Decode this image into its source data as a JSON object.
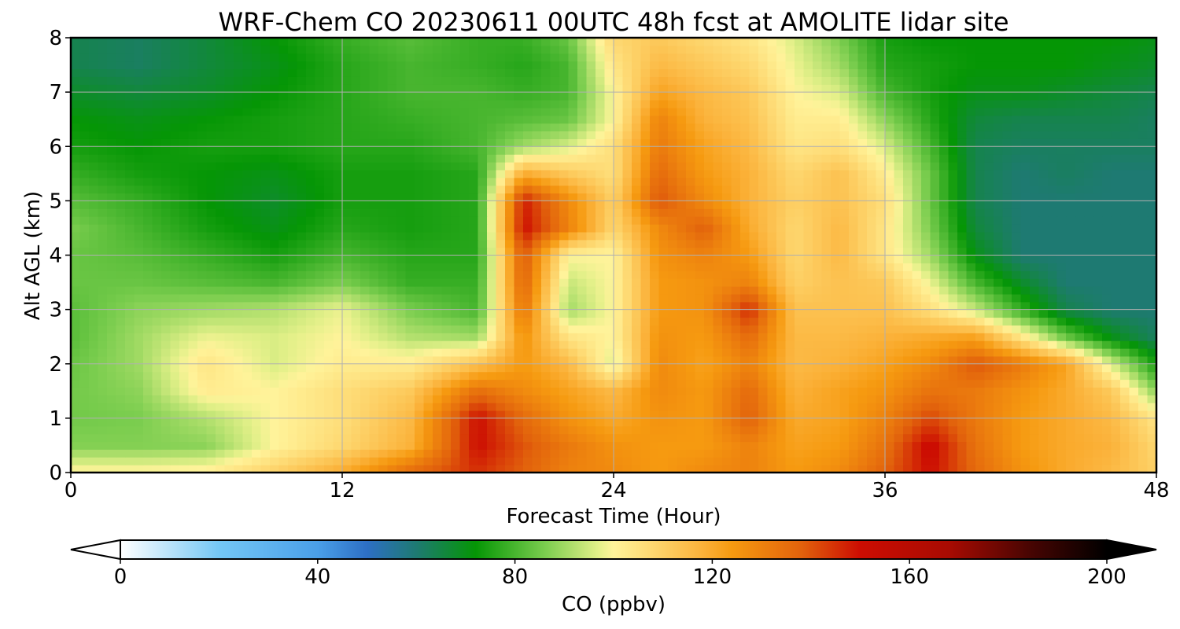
{
  "chart_data": {
    "type": "heatmap",
    "subtype": "filled-contour time-height cross-section",
    "title": "WRF-Chem CO  20230611 00UTC 48h fcst at AMOLITE lidar site",
    "xlabel": "Forecast Time (Hour)",
    "ylabel": "Alt AGL (km)",
    "xlim": [
      0,
      48
    ],
    "ylim": [
      0,
      8
    ],
    "xticks": [
      0,
      12,
      24,
      36,
      48
    ],
    "yticks": [
      0,
      1,
      2,
      3,
      4,
      5,
      6,
      7,
      8
    ],
    "grid": true,
    "colorbar": {
      "label": "CO  (ppbv)",
      "min": 0,
      "max": 200,
      "ticks": [
        0,
        40,
        80,
        120,
        160,
        200
      ],
      "extend": "both",
      "orientation": "horizontal",
      "stops": [
        {
          "value": 0,
          "color": "#ffffff"
        },
        {
          "value": 20,
          "color": "#74c7f5"
        },
        {
          "value": 40,
          "color": "#4a9fe8"
        },
        {
          "value": 50,
          "color": "#2d6fc4"
        },
        {
          "value": 60,
          "color": "#1e7a72"
        },
        {
          "value": 72,
          "color": "#059605"
        },
        {
          "value": 86,
          "color": "#7acd4e"
        },
        {
          "value": 97,
          "color": "#e3f089"
        },
        {
          "value": 100,
          "color": "#fff39a"
        },
        {
          "value": 110,
          "color": "#fdd065"
        },
        {
          "value": 118,
          "color": "#fbb23a"
        },
        {
          "value": 124,
          "color": "#f69a10"
        },
        {
          "value": 138,
          "color": "#e2620c"
        },
        {
          "value": 150,
          "color": "#cc0d02"
        },
        {
          "value": 168,
          "color": "#a80b02"
        },
        {
          "value": 184,
          "color": "#4a0502"
        },
        {
          "value": 200,
          "color": "#000000"
        }
      ]
    },
    "x": [
      0,
      3,
      6,
      9,
      12,
      15,
      18,
      20,
      22,
      24,
      26,
      28,
      30,
      32,
      34,
      36,
      38,
      40,
      42,
      44,
      46,
      48
    ],
    "y": [
      0,
      0.5,
      1,
      1.5,
      2,
      2.5,
      3,
      3.5,
      4,
      4.5,
      5,
      5.5,
      6,
      6.5,
      7,
      7.5,
      8
    ],
    "z": [
      [
        101,
        101,
        102,
        110,
        120,
        136,
        145,
        138,
        130,
        128,
        124,
        128,
        130,
        124,
        128,
        138,
        150,
        136,
        126,
        120,
        116,
        110
      ],
      [
        87,
        87,
        88,
        100,
        108,
        118,
        150,
        140,
        132,
        126,
        124,
        124,
        130,
        122,
        124,
        134,
        152,
        134,
        124,
        120,
        118,
        108
      ],
      [
        85,
        86,
        92,
        100,
        106,
        116,
        150,
        136,
        126,
        120,
        126,
        124,
        138,
        120,
        122,
        130,
        142,
        132,
        124,
        120,
        116,
        104
      ],
      [
        85,
        88,
        102,
        100,
        106,
        112,
        135,
        128,
        122,
        116,
        128,
        124,
        136,
        118,
        122,
        126,
        134,
        132,
        126,
        120,
        112,
        88
      ],
      [
        84,
        90,
        104,
        96,
        102,
        102,
        114,
        124,
        116,
        96,
        128,
        122,
        130,
        116,
        118,
        122,
        128,
        140,
        132,
        122,
        96,
        74
      ],
      [
        82,
        90,
        98,
        96,
        100,
        92,
        90,
        126,
        104,
        100,
        126,
        124,
        136,
        116,
        116,
        118,
        120,
        122,
        104,
        84,
        70,
        62
      ],
      [
        82,
        88,
        90,
        92,
        98,
        86,
        80,
        134,
        90,
        100,
        124,
        126,
        146,
        114,
        114,
        114,
        106,
        94,
        78,
        64,
        60,
        60
      ],
      [
        84,
        84,
        82,
        80,
        86,
        78,
        78,
        138,
        94,
        100,
        124,
        126,
        130,
        110,
        114,
        112,
        98,
        80,
        68,
        60,
        60,
        60
      ],
      [
        84,
        82,
        78,
        74,
        80,
        76,
        76,
        140,
        100,
        100,
        126,
        130,
        124,
        108,
        116,
        104,
        90,
        70,
        60,
        60,
        60,
        60
      ],
      [
        86,
        80,
        74,
        70,
        76,
        74,
        76,
        150,
        130,
        108,
        128,
        138,
        120,
        108,
        116,
        104,
        86,
        66,
        60,
        60,
        60,
        60
      ],
      [
        82,
        78,
        72,
        68,
        74,
        74,
        76,
        148,
        128,
        110,
        140,
        128,
        118,
        110,
        114,
        106,
        84,
        64,
        60,
        60,
        60,
        60
      ],
      [
        78,
        74,
        72,
        70,
        74,
        74,
        76,
        120,
        112,
        106,
        136,
        124,
        118,
        108,
        114,
        102,
        84,
        64,
        60,
        62,
        60,
        60
      ],
      [
        74,
        72,
        74,
        74,
        76,
        76,
        80,
        90,
        96,
        106,
        132,
        122,
        116,
        104,
        106,
        96,
        80,
        64,
        62,
        62,
        62,
        62
      ],
      [
        72,
        70,
        72,
        74,
        76,
        78,
        80,
        82,
        84,
        100,
        130,
        118,
        114,
        102,
        102,
        88,
        76,
        66,
        64,
        64,
        64,
        62
      ],
      [
        68,
        66,
        68,
        72,
        76,
        80,
        80,
        78,
        80,
        100,
        122,
        116,
        112,
        100,
        96,
        80,
        74,
        70,
        70,
        68,
        66,
        64
      ],
      [
        64,
        62,
        66,
        70,
        76,
        80,
        78,
        76,
        80,
        104,
        116,
        112,
        108,
        98,
        90,
        76,
        74,
        72,
        72,
        72,
        70,
        68
      ],
      [
        64,
        62,
        66,
        72,
        78,
        82,
        78,
        78,
        84,
        108,
        112,
        108,
        104,
        96,
        86,
        74,
        72,
        72,
        72,
        72,
        72,
        70
      ]
    ]
  }
}
